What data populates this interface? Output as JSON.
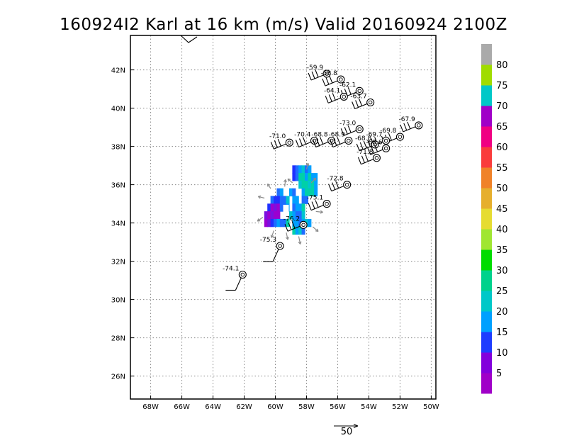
{
  "chart_data": {
    "type": "scatter",
    "title": "160924I2 Karl at 16 km (m/s) Valid 20160924 2100Z",
    "xlim": [
      -69.3,
      -49.7
    ],
    "ylim": [
      24.8,
      43.8
    ],
    "x_ticks": [
      -68,
      -66,
      -64,
      -62,
      -60,
      -58,
      -56,
      -54,
      -52,
      -50
    ],
    "x_tick_labels": [
      "68W",
      "66W",
      "64W",
      "62W",
      "60W",
      "58W",
      "56W",
      "54W",
      "52W",
      "50W"
    ],
    "y_ticks": [
      26,
      28,
      30,
      32,
      34,
      36,
      38,
      40,
      42
    ],
    "y_tick_labels": [
      "26N",
      "28N",
      "30N",
      "32N",
      "34N",
      "36N",
      "38N",
      "40N",
      "42N"
    ],
    "grid": true,
    "colorbar": {
      "labels": [
        "5",
        "10",
        "15",
        "20",
        "25",
        "30",
        "35",
        "40",
        "45",
        "50",
        "55",
        "60",
        "65",
        "70",
        "75",
        "80"
      ],
      "colors": [
        "#a000c8",
        "#8200dc",
        "#1e3cff",
        "#00a0ff",
        "#00c8c8",
        "#00d28c",
        "#00dc00",
        "#a0e632",
        "#e6dc32",
        "#e6af2d",
        "#f08228",
        "#fa3c3c",
        "#f00082",
        "#a000c8",
        "#00c8c8",
        "#a0dc00",
        "#aaaaaa"
      ]
    },
    "reference_vector": {
      "label": "50"
    },
    "points": [
      {
        "lon": -56.7,
        "lat": 41.8,
        "value": "-59.9"
      },
      {
        "lon": -55.8,
        "lat": 41.5,
        "value": "-58.8"
      },
      {
        "lon": -54.6,
        "lat": 40.9,
        "value": "-62.1"
      },
      {
        "lon": -55.6,
        "lat": 40.6,
        "value": "-64.1"
      },
      {
        "lon": -53.9,
        "lat": 40.3,
        "value": "-63.7"
      },
      {
        "lon": -50.8,
        "lat": 39.1,
        "value": "-67.9"
      },
      {
        "lon": -54.6,
        "lat": 38.9,
        "value": "-73.0"
      },
      {
        "lon": -52.0,
        "lat": 38.5,
        "value": "-69.8"
      },
      {
        "lon": -57.5,
        "lat": 38.3,
        "value": "-70.4"
      },
      {
        "lon": -56.4,
        "lat": 38.3,
        "value": "-68.8"
      },
      {
        "lon": -55.3,
        "lat": 38.3,
        "value": "-68.9"
      },
      {
        "lon": -52.9,
        "lat": 38.3,
        "value": "-69.7"
      },
      {
        "lon": -59.1,
        "lat": 38.2,
        "value": "-71.0"
      },
      {
        "lon": -53.6,
        "lat": 38.1,
        "value": "-68.8"
      },
      {
        "lon": -52.9,
        "lat": 37.9,
        "value": "-68.6"
      },
      {
        "lon": -53.5,
        "lat": 37.4,
        "value": "-71.8"
      },
      {
        "lon": -55.4,
        "lat": 36.0,
        "value": "-72.8"
      },
      {
        "lon": -56.7,
        "lat": 35.0,
        "value": "-75.1"
      },
      {
        "lon": -58.2,
        "lat": 33.9,
        "value": "-76.2"
      },
      {
        "lon": -59.7,
        "lat": 32.8,
        "value": "-75.3"
      },
      {
        "lon": -62.1,
        "lat": 31.3,
        "value": "-74.1"
      }
    ],
    "wind_field_pixels": [
      {
        "lon": -58.8,
        "lat": 36.8,
        "value": 10
      },
      {
        "lon": -58.6,
        "lat": 36.8,
        "value": 12
      },
      {
        "lon": -58.4,
        "lat": 36.8,
        "value": 18
      },
      {
        "lon": -58.2,
        "lat": 36.8,
        "value": 20
      },
      {
        "lon": -58.0,
        "lat": 36.8,
        "value": 14
      },
      {
        "lon": -57.8,
        "lat": 36.8,
        "value": 16
      },
      {
        "lon": -58.8,
        "lat": 36.4,
        "value": 8
      },
      {
        "lon": -58.6,
        "lat": 36.4,
        "value": 12
      },
      {
        "lon": -58.4,
        "lat": 36.4,
        "value": 22
      },
      {
        "lon": -58.2,
        "lat": 36.4,
        "value": 24
      },
      {
        "lon": -58.0,
        "lat": 36.4,
        "value": 18
      },
      {
        "lon": -57.8,
        "lat": 36.4,
        "value": 22
      },
      {
        "lon": -57.6,
        "lat": 36.4,
        "value": 18
      },
      {
        "lon": -57.4,
        "lat": 36.4,
        "value": 16
      },
      {
        "lon": -58.4,
        "lat": 36.0,
        "value": 20
      },
      {
        "lon": -58.2,
        "lat": 36.0,
        "value": 22
      },
      {
        "lon": -58.0,
        "lat": 36.0,
        "value": 24
      },
      {
        "lon": -57.8,
        "lat": 36.0,
        "value": 20
      },
      {
        "lon": -57.6,
        "lat": 36.0,
        "value": 22
      },
      {
        "lon": -57.4,
        "lat": 36.0,
        "value": 18
      },
      {
        "lon": -59.8,
        "lat": 35.6,
        "value": 14
      },
      {
        "lon": -59.6,
        "lat": 35.6,
        "value": 16
      },
      {
        "lon": -59.0,
        "lat": 35.6,
        "value": 18
      },
      {
        "lon": -58.8,
        "lat": 35.6,
        "value": 14
      },
      {
        "lon": -58.2,
        "lat": 35.6,
        "value": 18
      },
      {
        "lon": -58.0,
        "lat": 35.6,
        "value": 22
      },
      {
        "lon": -57.8,
        "lat": 35.6,
        "value": 24
      },
      {
        "lon": -57.6,
        "lat": 35.6,
        "value": 22
      },
      {
        "lon": -57.4,
        "lat": 35.6,
        "value": 16
      },
      {
        "lon": -60.2,
        "lat": 35.2,
        "value": 14
      },
      {
        "lon": -60.0,
        "lat": 35.2,
        "value": 8
      },
      {
        "lon": -59.8,
        "lat": 35.2,
        "value": 10
      },
      {
        "lon": -59.6,
        "lat": 35.2,
        "value": 12
      },
      {
        "lon": -59.4,
        "lat": 35.2,
        "value": 14
      },
      {
        "lon": -59.2,
        "lat": 35.2,
        "value": 20
      },
      {
        "lon": -58.8,
        "lat": 35.2,
        "value": 16
      },
      {
        "lon": -58.6,
        "lat": 35.2,
        "value": 18
      },
      {
        "lon": -58.2,
        "lat": 35.2,
        "value": 14
      },
      {
        "lon": -58.0,
        "lat": 35.2,
        "value": 12
      },
      {
        "lon": -60.4,
        "lat": 34.8,
        "value": 8
      },
      {
        "lon": -60.2,
        "lat": 34.8,
        "value": 4
      },
      {
        "lon": -60.0,
        "lat": 34.8,
        "value": 6
      },
      {
        "lon": -59.8,
        "lat": 34.8,
        "value": 2
      },
      {
        "lon": -59.6,
        "lat": 34.8,
        "value": 12
      },
      {
        "lon": -59.4,
        "lat": 34.8,
        "value": 14
      },
      {
        "lon": -59.2,
        "lat": 34.8,
        "value": 18
      },
      {
        "lon": -58.8,
        "lat": 34.8,
        "value": 14
      },
      {
        "lon": -58.6,
        "lat": 34.8,
        "value": 16
      },
      {
        "lon": -58.4,
        "lat": 34.8,
        "value": 18
      },
      {
        "lon": -58.2,
        "lat": 34.8,
        "value": 22
      },
      {
        "lon": -60.6,
        "lat": 34.4,
        "value": 6
      },
      {
        "lon": -60.4,
        "lat": 34.4,
        "value": 4
      },
      {
        "lon": -60.2,
        "lat": 34.4,
        "value": 6
      },
      {
        "lon": -60.0,
        "lat": 34.4,
        "value": 4
      },
      {
        "lon": -59.8,
        "lat": 34.4,
        "value": 2
      },
      {
        "lon": -59.0,
        "lat": 34.4,
        "value": 20
      },
      {
        "lon": -58.8,
        "lat": 34.4,
        "value": 18
      },
      {
        "lon": -58.6,
        "lat": 34.4,
        "value": 14
      },
      {
        "lon": -58.4,
        "lat": 34.4,
        "value": 12
      },
      {
        "lon": -58.2,
        "lat": 34.4,
        "value": 20
      },
      {
        "lon": -60.6,
        "lat": 34.0,
        "value": 4
      },
      {
        "lon": -60.4,
        "lat": 34.0,
        "value": 6
      },
      {
        "lon": -60.2,
        "lat": 34.0,
        "value": 10
      },
      {
        "lon": -60.0,
        "lat": 34.0,
        "value": 12
      },
      {
        "lon": -59.8,
        "lat": 34.0,
        "value": 16
      },
      {
        "lon": -59.6,
        "lat": 34.0,
        "value": 14
      },
      {
        "lon": -59.4,
        "lat": 34.0,
        "value": 12
      },
      {
        "lon": -59.2,
        "lat": 34.0,
        "value": 22
      },
      {
        "lon": -58.8,
        "lat": 34.0,
        "value": 18
      },
      {
        "lon": -58.6,
        "lat": 34.0,
        "value": 16
      },
      {
        "lon": -58.4,
        "lat": 34.0,
        "value": 14
      },
      {
        "lon": -58.2,
        "lat": 34.0,
        "value": 18
      },
      {
        "lon": -58.0,
        "lat": 34.0,
        "value": 20
      },
      {
        "lon": -57.8,
        "lat": 34.0,
        "value": 16
      },
      {
        "lon": -58.8,
        "lat": 33.6,
        "value": 24
      },
      {
        "lon": -58.6,
        "lat": 33.6,
        "value": 18
      },
      {
        "lon": -58.4,
        "lat": 33.6,
        "value": 20
      },
      {
        "lon": -58.2,
        "lat": 33.6,
        "value": 14
      }
    ],
    "field_arrows": [
      {
        "lon": -60.7,
        "lat": 35.3,
        "u": -0.8,
        "v": 0.2
      },
      {
        "lon": -60.3,
        "lat": 35.8,
        "u": -0.4,
        "v": 0.6
      },
      {
        "lon": -59.4,
        "lat": 35.9,
        "u": 0.1,
        "v": 0.9
      },
      {
        "lon": -60.8,
        "lat": 34.3,
        "u": -0.7,
        "v": -0.5
      },
      {
        "lon": -60.1,
        "lat": 33.6,
        "u": -0.3,
        "v": -0.9
      },
      {
        "lon": -59.3,
        "lat": 33.5,
        "u": 0.2,
        "v": -0.9
      },
      {
        "lon": -58.5,
        "lat": 33.3,
        "u": 0.2,
        "v": -1.0
      },
      {
        "lon": -57.6,
        "lat": 33.8,
        "u": 0.7,
        "v": -0.6
      },
      {
        "lon": -57.4,
        "lat": 34.6,
        "u": 0.9,
        "v": -0.1
      },
      {
        "lon": -57.7,
        "lat": 36.1,
        "u": 0.6,
        "v": 0.6
      },
      {
        "lon": -58.9,
        "lat": 36.1,
        "u": -0.6,
        "v": 0.5
      },
      {
        "lon": -58.0,
        "lat": 36.8,
        "u": 0.2,
        "v": 0.8
      }
    ]
  }
}
